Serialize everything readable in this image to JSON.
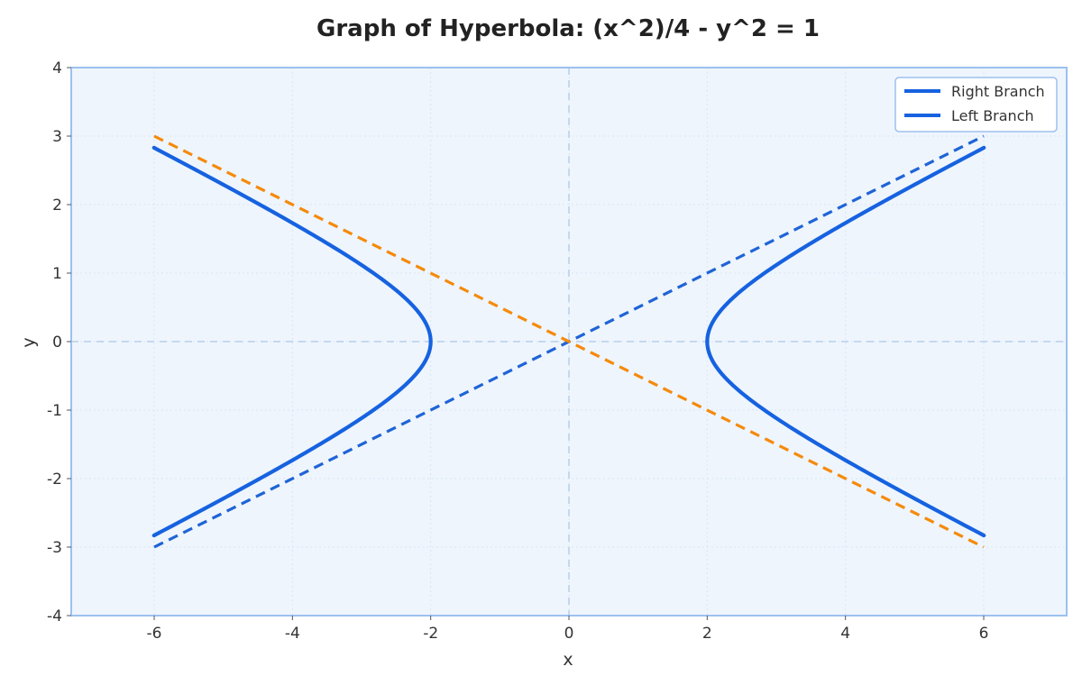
{
  "chart_data": {
    "type": "line",
    "title": "Graph of Hyperbola: (x^2)/4 - y^2 = 1",
    "xlabel": "x",
    "ylabel": "y",
    "xlim": [
      -7.2,
      7.2
    ],
    "ylim": [
      -4,
      4
    ],
    "xticks": [
      -6,
      -4,
      -2,
      0,
      2,
      4,
      6
    ],
    "yticks": [
      -4,
      -3,
      -2,
      -1,
      0,
      1,
      2,
      3,
      4
    ],
    "grid": true,
    "legend_position": "top-right",
    "colors": {
      "plot_background": "#eef5fd",
      "frame": "#9dc0ef",
      "grid": "#dbe6f3",
      "zero_line": "#b7cfe8",
      "branch": "#1662e0",
      "asymptote_positive": "#1f64d6",
      "asymptote_negative": "#f58a0b"
    },
    "series": [
      {
        "name": "Right Branch",
        "equation": "x = 2*sqrt(1 + y^2), x > 0",
        "x": [
          6.0,
          5.54,
          5.09,
          4.65,
          4.22,
          3.81,
          3.42,
          3.05,
          2.72,
          2.45,
          2.24,
          2.08,
          2.0,
          2.08,
          2.24,
          2.45,
          2.72,
          3.05,
          3.42,
          3.81,
          4.22,
          4.65,
          5.09,
          5.54,
          6.0
        ],
        "y": [
          -2.83,
          -2.6,
          -2.34,
          -2.1,
          -1.86,
          -1.62,
          -1.39,
          -1.15,
          -0.92,
          -0.71,
          -0.5,
          -0.29,
          0.0,
          0.29,
          0.5,
          0.71,
          0.92,
          1.15,
          1.39,
          1.62,
          1.86,
          2.1,
          2.34,
          2.6,
          2.83
        ],
        "style": "solid"
      },
      {
        "name": "Left Branch",
        "equation": "x = -2*sqrt(1 + y^2), x < 0",
        "x": [
          -6.0,
          -5.54,
          -5.09,
          -4.65,
          -4.22,
          -3.81,
          -3.42,
          -3.05,
          -2.72,
          -2.45,
          -2.24,
          -2.08,
          -2.0,
          -2.08,
          -2.24,
          -2.45,
          -2.72,
          -3.05,
          -3.42,
          -3.81,
          -4.22,
          -4.65,
          -5.09,
          -5.54,
          -6.0
        ],
        "y": [
          -2.83,
          -2.6,
          -2.34,
          -2.1,
          -1.86,
          -1.62,
          -1.39,
          -1.15,
          -0.92,
          -0.71,
          -0.5,
          -0.29,
          0.0,
          0.29,
          0.5,
          0.71,
          0.92,
          1.15,
          1.39,
          1.62,
          1.86,
          2.1,
          2.34,
          2.6,
          2.83
        ],
        "style": "solid"
      }
    ],
    "asymptotes": [
      {
        "equation": "y = x/2",
        "x": [
          -6,
          6
        ],
        "y": [
          -3,
          3
        ],
        "style": "dashed"
      },
      {
        "equation": "y = -x/2",
        "x": [
          -6,
          6
        ],
        "y": [
          3,
          -3
        ],
        "style": "dashed"
      }
    ]
  }
}
